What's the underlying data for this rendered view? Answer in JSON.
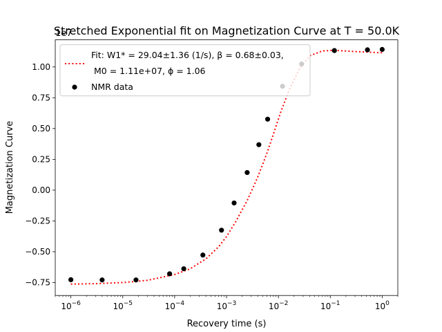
{
  "chart_data": {
    "type": "scatter",
    "title": "Stretched Exponential fit on Magnetization Curve at T = 50.0K",
    "xlabel": "Recovery time (s)",
    "ylabel": "Magnetization Curve",
    "y_offset_text": "1e7",
    "xscale": "log",
    "xlim": [
      5e-07,
      2.0
    ],
    "ylim": [
      -8.55,
      12.2
    ],
    "y_multiplier": 10000000,
    "x_ticks": [
      {
        "value": 1e-06,
        "base": "10",
        "exp": "−6"
      },
      {
        "value": 1e-05,
        "base": "10",
        "exp": "−5"
      },
      {
        "value": 0.0001,
        "base": "10",
        "exp": "−4"
      },
      {
        "value": 0.001,
        "base": "10",
        "exp": "−3"
      },
      {
        "value": 0.01,
        "base": "10",
        "exp": "−2"
      },
      {
        "value": 0.1,
        "base": "10",
        "exp": "−1"
      },
      {
        "value": 1,
        "base": "10",
        "exp": "0"
      }
    ],
    "y_ticks": [
      {
        "value": -7.5,
        "label": "−0.75"
      },
      {
        "value": -5.0,
        "label": "−0.50"
      },
      {
        "value": -2.5,
        "label": "−0.25"
      },
      {
        "value": 0.0,
        "label": "0.00"
      },
      {
        "value": 2.5,
        "label": "0.25"
      },
      {
        "value": 5.0,
        "label": "0.50"
      },
      {
        "value": 7.5,
        "label": "0.75"
      },
      {
        "value": 10.0,
        "label": "1.00"
      }
    ],
    "legend": {
      "placement": "upper-left",
      "fit_line1": "Fit: W1* = 29.04±1.36 (1/s), β = 0.68±0.03,",
      "fit_line2": "M0 = 1.11e+07, ϕ = 1.06",
      "data_label": "NMR data"
    },
    "fit_params": {
      "W1": 29.04,
      "beta": 0.68,
      "M0": 11.1,
      "phi": 1.06
    },
    "series": [
      {
        "name": "NMR data",
        "color": "#000000",
        "marker": "circle",
        "x": [
          1e-06,
          4e-06,
          1.8e-05,
          8e-05,
          0.00015,
          0.00035,
          0.0008,
          0.0014,
          0.0025,
          0.0042,
          0.0062,
          0.012,
          0.028,
          0.12,
          0.52,
          1.0
        ],
        "y": [
          -7.27,
          -7.29,
          -7.29,
          -6.79,
          -6.38,
          -5.27,
          -3.25,
          -1.04,
          1.43,
          3.69,
          5.76,
          8.43,
          10.24,
          11.33,
          11.39,
          11.42
        ]
      },
      {
        "name": "Fit",
        "color": "#ff0000",
        "style": "dotted",
        "x": [
          1e-06,
          3e-06,
          1e-05,
          3e-05,
          0.0001,
          0.0002,
          0.0004,
          0.0007,
          0.001,
          0.0015,
          0.0025,
          0.004,
          0.006,
          0.008,
          0.011,
          0.016,
          0.025,
          0.04,
          0.07,
          0.12,
          0.3,
          1.0
        ],
        "y": [
          -7.63,
          -7.59,
          -7.5,
          -7.32,
          -6.85,
          -6.38,
          -5.58,
          -4.61,
          -3.77,
          -2.57,
          -0.85,
          1.07,
          2.99,
          4.54,
          6.3,
          8.1,
          9.8,
          10.9,
          11.3,
          11.35,
          11.25,
          11.15
        ]
      }
    ]
  }
}
